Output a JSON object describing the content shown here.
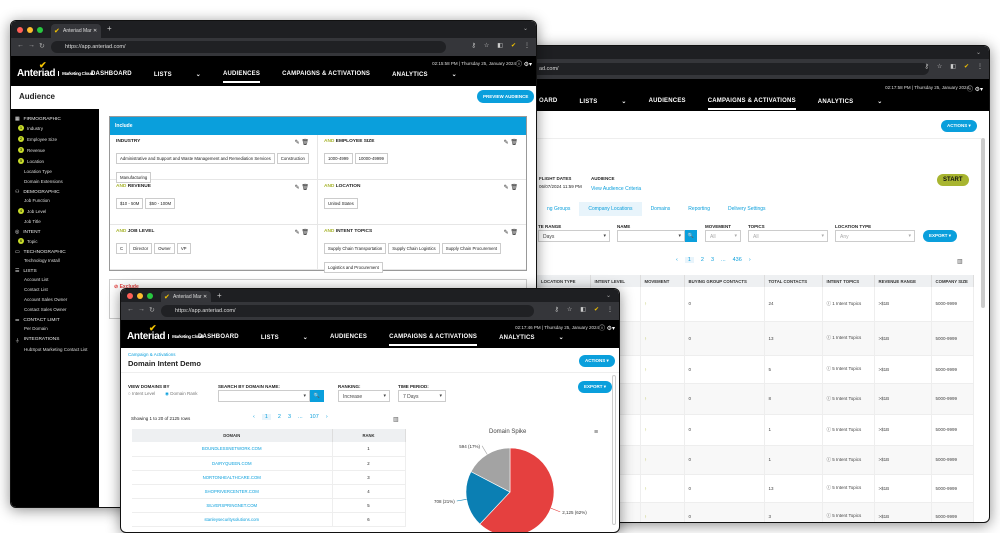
{
  "browser": {
    "tab_title": "Anteriad Mar",
    "url": "https://app.anteriad.com/",
    "url_partial": "ad.com/"
  },
  "brand": {
    "name": "Anteriad",
    "product": "Marketing Cloud",
    "accent": "#0a9fdc",
    "lime": "#c8dc2a"
  },
  "nav": {
    "dashboard": "DASHBOARD",
    "dashboard_partial": "OARD",
    "lists": "LISTS",
    "audiences": "AUDIENCES",
    "campaigns": "CAMPAIGNS & ACTIVATIONS",
    "analytics": "ANALYTICS"
  },
  "win_audience": {
    "time": "02:15:58 PM",
    "date": "Thursday 25, January 2024",
    "page_title": "Audience",
    "preview_button": "PREVIEW AUDIENCE",
    "sidebar": [
      {
        "group": "FIRMOGRAPHIC",
        "icon": "building-icon",
        "items": [
          {
            "label": "Industry",
            "badge": "1"
          },
          {
            "label": "Employee Size",
            "badge": "2"
          },
          {
            "label": "Revenue",
            "badge": "3"
          },
          {
            "label": "Location",
            "badge": "5"
          },
          {
            "label": "Location Type"
          },
          {
            "label": "Domain Extensions"
          }
        ]
      },
      {
        "group": "DEMOGRAPHIC",
        "icon": "people-icon",
        "items": [
          {
            "label": "Job Function"
          },
          {
            "label": "Job Level",
            "badge": "4"
          },
          {
            "label": "Job Title"
          }
        ]
      },
      {
        "group": "INTENT",
        "icon": "target-icon",
        "items": [
          {
            "label": "Topic",
            "badge": "6"
          }
        ]
      },
      {
        "group": "TECHNOGRAPHIC",
        "icon": "devices-icon",
        "items": [
          {
            "label": "Technology Install"
          }
        ]
      },
      {
        "group": "LISTS",
        "icon": "list-icon",
        "items": [
          {
            "label": "Account List"
          },
          {
            "label": "Contact List"
          },
          {
            "label": "Account Sales Owner"
          },
          {
            "label": "Contact Sales Owner"
          }
        ]
      },
      {
        "group": "CONTACT LIMIT",
        "icon": "sliders-icon",
        "items": [
          {
            "label": "Per Domain"
          }
        ]
      },
      {
        "group": "INTEGRATIONS",
        "icon": "plug-icon",
        "items": [
          {
            "label": "HubSpot Marketing Contact List"
          }
        ]
      }
    ],
    "include_label": "Include",
    "exclude_label": "Exclude",
    "and_label": "AND",
    "criteria": [
      {
        "title": "INDUSTRY",
        "values": [
          "Administrative and Support and Waste Management and Remediation Services",
          "Construction",
          "Manufacturing"
        ]
      },
      {
        "title": "EMPLOYEE SIZE",
        "and": true,
        "values": [
          "1000-4999",
          "10000-49999"
        ]
      },
      {
        "title": "REVENUE",
        "and": true,
        "values": [
          "$10 - 50M",
          "$50 - 100M"
        ]
      },
      {
        "title": "LOCATION",
        "and": true,
        "values": [
          "United States"
        ]
      },
      {
        "title": "JOB LEVEL",
        "and": true,
        "values": [
          "C",
          "Director",
          "Owner",
          "VP"
        ]
      },
      {
        "title": "INTENT TOPICS",
        "and": true,
        "values": [
          "Supply Chain Transportation",
          "Supply Chain Logistics",
          "Supply Chain Procurement",
          "Logistics and Procurement"
        ]
      }
    ]
  },
  "win_locations": {
    "time": "02:17:58 PM",
    "date": "Thursday 25, January 2024",
    "actions_button": "ACTIONS",
    "flight_dates_label": "FLIGHT DATES",
    "flight_dates_value": "06/07/2024 11:59 PM",
    "audience_label": "AUDIENCE",
    "audience_link": "View Audience Criteria",
    "start_button": "START",
    "tabs": [
      "ng Groups",
      "Company Locations",
      "Domains",
      "Reporting",
      "Delivery Settings"
    ],
    "filters": {
      "date_range_label": "TE RANGE",
      "date_range_value": "Days",
      "name_label": "NAME",
      "movement_label": "MOVEMENT",
      "movement_value": "All",
      "topics_label": "TOPICS",
      "topics_value": "All",
      "location_type_label": "LOCATION TYPE",
      "location_type_value": "Any",
      "export_button": "EXPORT"
    },
    "pagination": [
      "‹",
      "1",
      "2",
      "3",
      "...",
      "436",
      "›"
    ],
    "columns": [
      "LOCATION TYPE",
      "INTENT LEVEL",
      "MOVEMENT",
      "BUYING GROUP CONTACTS",
      "TOTAL CONTACTS",
      "INTENT TOPICS",
      "REVENUE RANGE",
      "COMPANY SIZE"
    ],
    "rows": [
      {
        "movement": "↑",
        "buying": "0",
        "total": "24",
        "topics": "1 Intent Topics",
        "revenue": ">$1B",
        "size": "5000-9999"
      },
      {
        "movement": "↑",
        "buying": "0",
        "total": "13",
        "topics": "1 Intent Topics",
        "revenue": ">$1B",
        "size": "5000-9999"
      },
      {
        "movement": "↑",
        "buying": "0",
        "total": "5",
        "topics": "5 Intent Topics",
        "revenue": ">$1B",
        "size": "5000-9999"
      },
      {
        "movement": "↑",
        "buying": "0",
        "total": "8",
        "topics": "5 Intent Topics",
        "revenue": ">$1B",
        "size": "5000-9999"
      },
      {
        "movement": "↑",
        "buying": "0",
        "total": "1",
        "topics": "5 Intent Topics",
        "revenue": ">$1B",
        "size": "5000-9999"
      },
      {
        "movement": "↑",
        "buying": "0",
        "total": "1",
        "topics": "5 Intent Topics",
        "revenue": ">$1B",
        "size": "5000-9999"
      },
      {
        "movement": "↑",
        "buying": "0",
        "total": "13",
        "topics": "5 Intent Topics",
        "revenue": ">$1B",
        "size": "5000-9999"
      },
      {
        "movement": "↑",
        "buying": "0",
        "total": "3",
        "topics": "5 Intent Topics",
        "revenue": ">$1B",
        "size": "5000-9999"
      }
    ]
  },
  "win_domain": {
    "time": "02:17:46 PM",
    "date": "Thursday 25, January 2024",
    "breadcrumb": "Campaign & Activations",
    "page_title": "Domain Intent Demo",
    "actions_button": "ACTIONS",
    "view_by_label": "VIEW DOMAINS BY",
    "view_by_options": [
      "Intent Level",
      "Domain Rank"
    ],
    "view_by_selected": "Domain Rank",
    "search_label": "SEARCH BY DOMAIN NAME:",
    "search_value": "",
    "ranking_label": "RANKING:",
    "ranking_value": "Increase",
    "period_label": "TIME PERIOD:",
    "period_value": "7 Days",
    "export_button": "EXPORT",
    "showing": "Showing 1 to 20 of 2125 rows",
    "pagination": [
      "‹",
      "1",
      "2",
      "3",
      "...",
      "107",
      "›"
    ],
    "columns": [
      "DOMAIN",
      "RANK"
    ],
    "rows": [
      {
        "domain": "BOUNDLESSNETWORK.COM",
        "rank": "1"
      },
      {
        "domain": "DAIRYQUEEN.COM",
        "rank": "2"
      },
      {
        "domain": "NORTONHEALTHCARE.COM",
        "rank": "3"
      },
      {
        "domain": "SHOPRIVERCENTER.COM",
        "rank": "4"
      },
      {
        "domain": "SILVERSPRINGNET.COM",
        "rank": "5"
      },
      {
        "domain": "stanleysecuritysolutions.com",
        "rank": "6"
      }
    ]
  },
  "chart_data": {
    "type": "pie",
    "title": "Domain Spike",
    "slices": [
      {
        "value": 2125,
        "label": "2,125 (62%)",
        "color": "#e5403f"
      },
      {
        "value": 708,
        "label": "708 (21%)",
        "color": "#0b7fb3"
      },
      {
        "value": 594,
        "label": "594 (17%)",
        "color": "#a3a3a3"
      }
    ]
  }
}
